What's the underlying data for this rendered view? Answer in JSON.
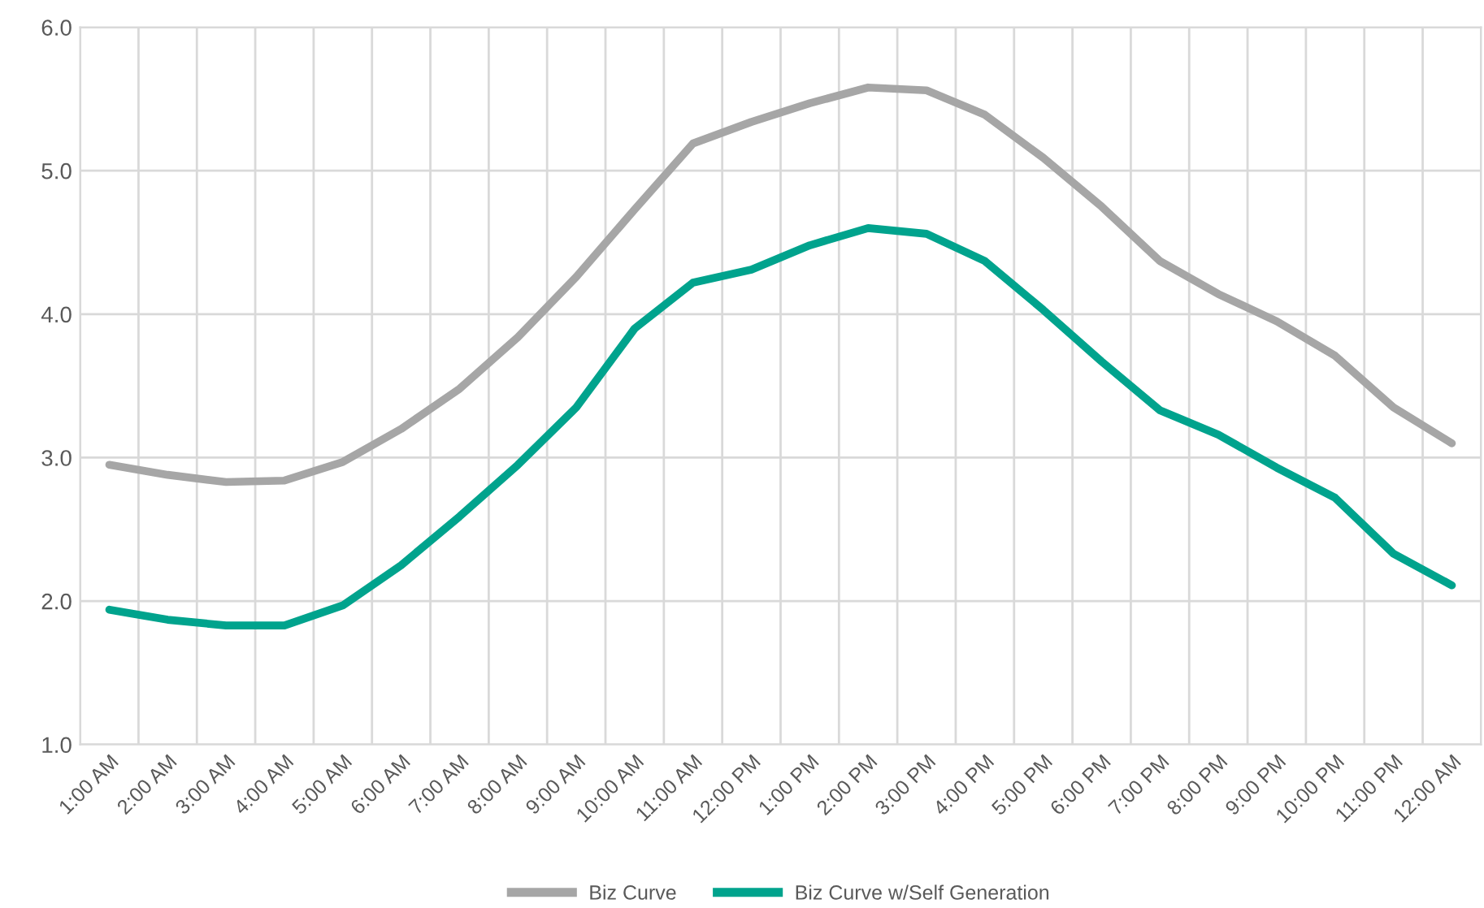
{
  "chart_data": {
    "type": "line",
    "categories": [
      "1:00 AM",
      "2:00 AM",
      "3:00 AM",
      "4:00 AM",
      "5:00 AM",
      "6:00 AM",
      "7:00 AM",
      "8:00 AM",
      "9:00 AM",
      "10:00 AM",
      "11:00 AM",
      "12:00 PM",
      "1:00 PM",
      "2:00 PM",
      "3:00 PM",
      "4:00 PM",
      "5:00 PM",
      "6:00 PM",
      "7:00 PM",
      "8:00 PM",
      "9:00 PM",
      "10:00 PM",
      "11:00 PM",
      "12:00 AM"
    ],
    "series": [
      {
        "name": "Biz Curve",
        "color": "#a6a6a6",
        "values": [
          2.95,
          2.88,
          2.83,
          2.84,
          2.97,
          3.2,
          3.48,
          3.84,
          4.26,
          4.73,
          5.19,
          5.34,
          5.47,
          5.58,
          5.56,
          5.39,
          5.09,
          4.75,
          4.37,
          4.14,
          3.95,
          3.71,
          3.35,
          3.1
        ]
      },
      {
        "name": "Biz Curve w/Self Generation",
        "color": "#00a38d",
        "values": [
          1.94,
          1.87,
          1.83,
          1.83,
          1.97,
          2.25,
          2.59,
          2.95,
          3.35,
          3.9,
          4.22,
          4.31,
          4.48,
          4.6,
          4.56,
          4.37,
          4.03,
          3.67,
          3.33,
          3.16,
          2.93,
          2.72,
          2.33,
          2.11
        ]
      }
    ],
    "ylim": [
      1.0,
      6.0
    ],
    "yticks": [
      {
        "value": 1.0,
        "label": "1.0"
      },
      {
        "value": 2.0,
        "label": "2.0"
      },
      {
        "value": 3.0,
        "label": "3.0"
      },
      {
        "value": 4.0,
        "label": "4.0"
      },
      {
        "value": 5.0,
        "label": "5.0"
      },
      {
        "value": 6.0,
        "label": "6.0"
      }
    ],
    "grid": true,
    "legend": "bottom",
    "marker": "none",
    "line_style": "solid"
  }
}
